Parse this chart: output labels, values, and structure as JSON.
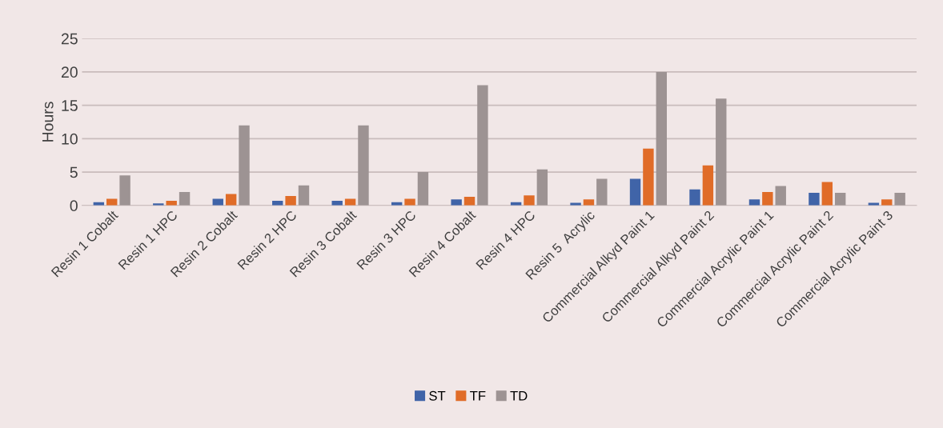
{
  "chart_data": {
    "type": "bar",
    "ylabel": "Hours",
    "categories": [
      "Resin 1 Cobalt",
      "Resin 1 HPC",
      "Resin 2 Cobalt",
      "Resin 2 HPC",
      "Resin 3 Cobalt",
      "Resin 3 HPC",
      "Resin 4 Cobalt",
      "Resin 4 HPC",
      "Resin 5  Acrylic",
      "Commercial Alkyd Paint 1",
      "Commercial Alkyd Paint 2",
      "Commercial Acrylic Paint 1",
      "Commercial Acrylic Paint 2",
      "Commercial Acrylic Paint 3"
    ],
    "series": [
      {
        "name": "ST",
        "color": "#4064a8",
        "values": [
          0.5,
          0.3,
          1,
          0.7,
          0.7,
          0.5,
          0.9,
          0.5,
          0.4,
          4,
          2.4,
          0.9,
          1.9,
          0.4
        ]
      },
      {
        "name": "TF",
        "color": "#e06c28",
        "values": [
          1,
          0.7,
          1.7,
          1.4,
          1,
          1,
          1.3,
          1.5,
          0.9,
          8.5,
          6,
          2,
          3.5,
          0.9
        ]
      },
      {
        "name": "TD",
        "color": "#9d9393",
        "values": [
          4.5,
          2,
          12,
          3,
          12,
          5,
          18,
          5.4,
          4,
          20,
          16,
          2.9,
          1.9,
          1.9
        ]
      }
    ],
    "ylim": [
      0,
      25
    ],
    "yticks": [
      0,
      5,
      10,
      15,
      20,
      25
    ],
    "grid": "y",
    "legend": "bottom"
  }
}
